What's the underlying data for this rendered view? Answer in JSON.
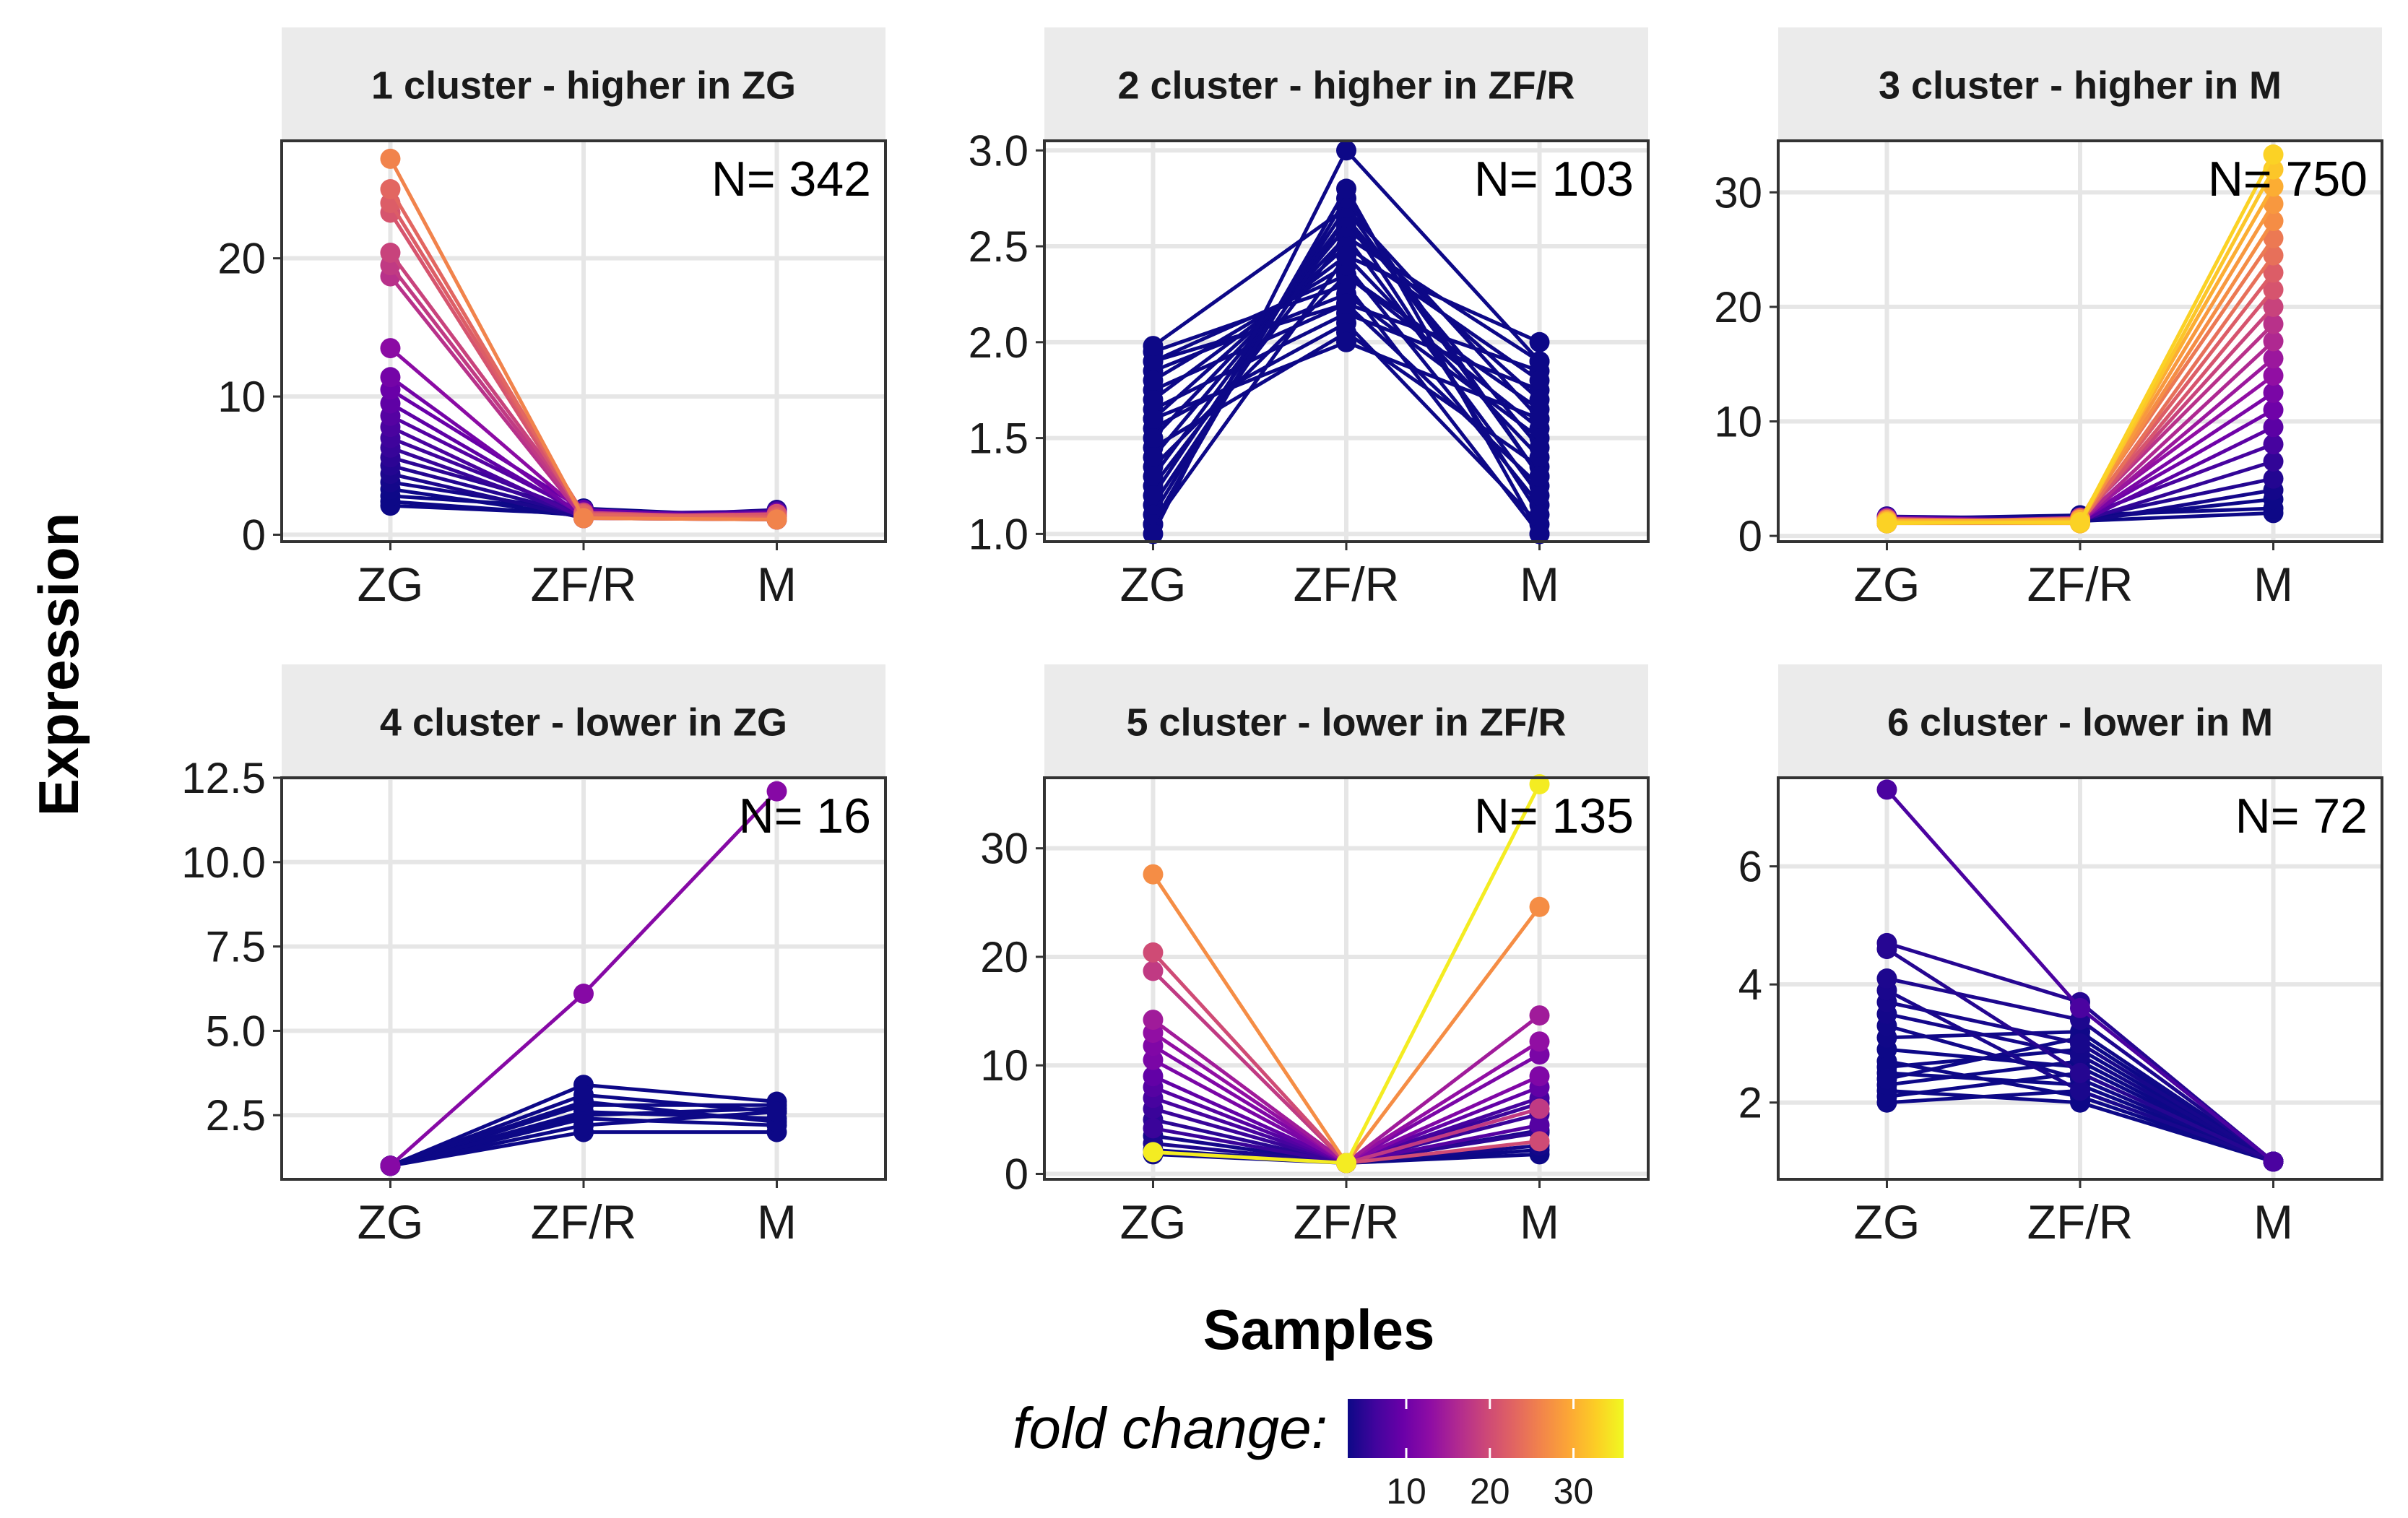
{
  "figure": {
    "ylabel": "Expression",
    "xlabel": "Samples",
    "legend_title": "fold change:",
    "legend_ticks": [
      "10",
      "20",
      "30"
    ],
    "legend_range": [
      3,
      36
    ],
    "colors": {
      "strip_bg": "#ebebeb",
      "grid": "#e6e6e6",
      "panel_border": "#333333",
      "palette": [
        "#0d0887",
        "#3e049c",
        "#6a00a8",
        "#900da4",
        "#b12a90",
        "#cc4778",
        "#e16462",
        "#f2844b",
        "#fca636",
        "#fcce25",
        "#f0f921"
      ]
    },
    "legend_position": "bottom"
  },
  "chart_data": [
    {
      "type": "line",
      "title": "1 cluster - higher in ZG",
      "annotation": "N= 342",
      "categories": [
        "ZG",
        "ZF/R",
        "M"
      ],
      "yticks": [
        0,
        10,
        20
      ],
      "ytick_labels": [
        "0",
        "10",
        "20"
      ],
      "ylim": [
        -0.5,
        28.5
      ],
      "series": [
        {
          "values": [
            27.2,
            1.2,
            1.1
          ],
          "fold_change": 26
        },
        {
          "values": [
            25.0,
            1.4,
            1.2
          ],
          "fold_change": 23
        },
        {
          "values": [
            24.0,
            1.5,
            1.3
          ],
          "fold_change": 22
        },
        {
          "values": [
            23.3,
            1.3,
            1.5
          ],
          "fold_change": 21
        },
        {
          "values": [
            20.4,
            1.6,
            1.2
          ],
          "fold_change": 19
        },
        {
          "values": [
            19.5,
            1.4,
            1.4
          ],
          "fold_change": 18
        },
        {
          "values": [
            18.7,
            1.2,
            1.1
          ],
          "fold_change": 17
        },
        {
          "values": [
            13.5,
            1.5,
            1.3
          ],
          "fold_change": 12.5
        },
        {
          "values": [
            11.4,
            1.3,
            1.6
          ],
          "fold_change": 10.5
        },
        {
          "values": [
            10.5,
            1.8,
            1.2
          ],
          "fold_change": 9.5
        },
        {
          "values": [
            9.5,
            1.4,
            1.5
          ],
          "fold_change": 8.8
        },
        {
          "values": [
            8.6,
            1.6,
            1.3
          ],
          "fold_change": 8
        },
        {
          "values": [
            7.8,
            1.2,
            1.1
          ],
          "fold_change": 7.2
        },
        {
          "values": [
            7.0,
            1.5,
            1.7
          ],
          "fold_change": 6.4
        },
        {
          "values": [
            6.3,
            1.3,
            1.2
          ],
          "fold_change": 5.8
        },
        {
          "values": [
            5.6,
            1.7,
            1.4
          ],
          "fold_change": 5.1
        },
        {
          "values": [
            5.0,
            1.4,
            1.3
          ],
          "fold_change": 4.5
        },
        {
          "values": [
            4.4,
            1.2,
            1.8
          ],
          "fold_change": 4
        },
        {
          "values": [
            3.8,
            1.6,
            1.2
          ],
          "fold_change": 3.5
        },
        {
          "values": [
            3.3,
            1.3,
            1.5
          ],
          "fold_change": 3.1
        },
        {
          "values": [
            2.8,
            1.9,
            1.3
          ],
          "fold_change": 2.6
        },
        {
          "values": [
            2.4,
            1.4,
            1.1
          ],
          "fold_change": 2.2
        },
        {
          "values": [
            2.1,
            1.5,
            1.6
          ],
          "fold_change": 2
        }
      ]
    },
    {
      "type": "line",
      "title": "2 cluster - higher in ZF/R",
      "annotation": "N= 103",
      "categories": [
        "ZG",
        "ZF/R",
        "M"
      ],
      "yticks": [
        1.0,
        1.5,
        2.0,
        2.5,
        3.0
      ],
      "ytick_labels": [
        "1.0",
        "1.5",
        "2.0",
        "2.5",
        "3.0"
      ],
      "ylim": [
        0.96,
        3.05
      ],
      "series": [
        {
          "values": [
            1.0,
            3.0,
            1.9
          ],
          "fold_change": 3
        },
        {
          "values": [
            1.05,
            2.8,
            1.0
          ],
          "fold_change": 2.8
        },
        {
          "values": [
            1.1,
            2.75,
            1.3
          ],
          "fold_change": 2.6
        },
        {
          "values": [
            1.2,
            2.7,
            1.6
          ],
          "fold_change": 2.5
        },
        {
          "values": [
            1.3,
            2.65,
            1.1
          ],
          "fold_change": 2.4
        },
        {
          "values": [
            1.4,
            2.6,
            1.7
          ],
          "fold_change": 2.3
        },
        {
          "values": [
            1.5,
            2.55,
            1.2
          ],
          "fold_change": 2.2
        },
        {
          "values": [
            1.6,
            2.5,
            1.8
          ],
          "fold_change": 2.2
        },
        {
          "values": [
            1.7,
            2.45,
            1.4
          ],
          "fold_change": 2.1
        },
        {
          "values": [
            1.8,
            2.4,
            1.15
          ],
          "fold_change": 2.1
        },
        {
          "values": [
            1.9,
            2.35,
            1.65
          ],
          "fold_change": 2
        },
        {
          "values": [
            1.95,
            2.3,
            1.0
          ],
          "fold_change": 2
        },
        {
          "values": [
            1.85,
            2.25,
            1.5
          ],
          "fold_change": 2
        },
        {
          "values": [
            1.75,
            2.2,
            1.25
          ],
          "fold_change": 2
        },
        {
          "values": [
            1.65,
            2.15,
            1.75
          ],
          "fold_change": 2
        },
        {
          "values": [
            1.55,
            2.1,
            1.05
          ],
          "fold_change": 2
        },
        {
          "values": [
            1.45,
            2.05,
            1.35
          ],
          "fold_change": 2
        },
        {
          "values": [
            1.35,
            2.35,
            1.55
          ],
          "fold_change": 2
        },
        {
          "values": [
            1.25,
            2.55,
            1.9
          ],
          "fold_change": 2.1
        },
        {
          "values": [
            1.15,
            2.65,
            1.45
          ],
          "fold_change": 2.3
        },
        {
          "values": [
            1.05,
            2.45,
            2.0
          ],
          "fold_change": 2.3
        },
        {
          "values": [
            1.98,
            2.7,
            1.3
          ],
          "fold_change": 2.1
        },
        {
          "values": [
            1.9,
            2.2,
            1.85
          ],
          "fold_change": 2
        },
        {
          "values": [
            1.6,
            2.0,
            1.6
          ],
          "fold_change": 2
        }
      ]
    },
    {
      "type": "line",
      "title": "3 cluster - higher in M",
      "annotation": "N= 750",
      "categories": [
        "ZG",
        "ZF/R",
        "M"
      ],
      "yticks": [
        0,
        10,
        20,
        30
      ],
      "ytick_labels": [
        "0",
        "10",
        "20",
        "30"
      ],
      "ylim": [
        -0.5,
        34.5
      ],
      "series": [
        {
          "values": [
            1.1,
            1.2,
            33.3
          ],
          "fold_change": 33
        },
        {
          "values": [
            1.2,
            1.1,
            32.0
          ],
          "fold_change": 32
        },
        {
          "values": [
            1.3,
            1.4,
            30.5
          ],
          "fold_change": 30
        },
        {
          "values": [
            1.1,
            1.3,
            29.0
          ],
          "fold_change": 28
        },
        {
          "values": [
            1.4,
            1.2,
            27.5
          ],
          "fold_change": 27
        },
        {
          "values": [
            1.2,
            1.5,
            26.0
          ],
          "fold_change": 25
        },
        {
          "values": [
            1.1,
            1.1,
            24.5
          ],
          "fold_change": 24
        },
        {
          "values": [
            1.3,
            1.3,
            23.0
          ],
          "fold_change": 22
        },
        {
          "values": [
            1.5,
            1.2,
            21.5
          ],
          "fold_change": 21
        },
        {
          "values": [
            1.2,
            1.4,
            20.0
          ],
          "fold_change": 19
        },
        {
          "values": [
            1.1,
            1.6,
            18.5
          ],
          "fold_change": 17
        },
        {
          "values": [
            1.4,
            1.3,
            17.0
          ],
          "fold_change": 16
        },
        {
          "values": [
            1.3,
            1.2,
            15.5
          ],
          "fold_change": 14
        },
        {
          "values": [
            1.2,
            1.5,
            14.0
          ],
          "fold_change": 13
        },
        {
          "values": [
            1.6,
            1.3,
            12.5
          ],
          "fold_change": 11
        },
        {
          "values": [
            1.1,
            1.4,
            11.0
          ],
          "fold_change": 10
        },
        {
          "values": [
            1.3,
            1.2,
            9.5
          ],
          "fold_change": 8.5
        },
        {
          "values": [
            1.2,
            1.6,
            8.0
          ],
          "fold_change": 7
        },
        {
          "values": [
            1.4,
            1.3,
            6.5
          ],
          "fold_change": 5.5
        },
        {
          "values": [
            1.7,
            1.5,
            5.0
          ],
          "fold_change": 4.5
        },
        {
          "values": [
            1.3,
            1.2,
            4.0
          ],
          "fold_change": 3.5
        },
        {
          "values": [
            1.2,
            1.4,
            3.2
          ],
          "fold_change": 2.8
        },
        {
          "values": [
            1.5,
            1.8,
            2.4
          ],
          "fold_change": 2.2
        },
        {
          "values": [
            1.1,
            1.3,
            2.0
          ],
          "fold_change": 2
        }
      ]
    },
    {
      "type": "line",
      "title": "4 cluster - lower in ZG",
      "annotation": "N= 16",
      "categories": [
        "ZG",
        "ZF/R",
        "M"
      ],
      "yticks": [
        2.5,
        5.0,
        7.5,
        10.0,
        12.5
      ],
      "ytick_labels": [
        "2.5",
        "5.0",
        "7.5",
        "10.0",
        "12.5"
      ],
      "ylim": [
        0.6,
        12.5
      ],
      "series": [
        {
          "values": [
            1.0,
            6.1,
            12.1
          ],
          "fold_change": 12
        },
        {
          "values": [
            1.0,
            3.4,
            2.9
          ],
          "fold_change": 3
        },
        {
          "values": [
            1.0,
            3.1,
            2.6
          ],
          "fold_change": 3
        },
        {
          "values": [
            1.0,
            2.8,
            2.8
          ],
          "fold_change": 2.8
        },
        {
          "values": [
            1.0,
            2.6,
            2.4
          ],
          "fold_change": 2.6
        },
        {
          "values": [
            1.0,
            2.4,
            2.2
          ],
          "fold_change": 2.4
        },
        {
          "values": [
            1.0,
            2.2,
            2.6
          ],
          "fold_change": 2.4
        },
        {
          "values": [
            1.0,
            2.0,
            2.0
          ],
          "fold_change": 2
        },
        {
          "values": [
            1.0,
            2.9,
            2.3
          ],
          "fold_change": 2.8
        },
        {
          "values": [
            1.0,
            2.5,
            2.7
          ],
          "fold_change": 2.6
        }
      ]
    },
    {
      "type": "line",
      "title": "5 cluster - lower in ZF/R",
      "annotation": "N= 135",
      "categories": [
        "ZG",
        "ZF/R",
        "M"
      ],
      "yticks": [
        0,
        10,
        20,
        30
      ],
      "ytick_labels": [
        "0",
        "10",
        "20",
        "30"
      ],
      "ylim": [
        -0.5,
        36.5
      ],
      "series": [
        {
          "values": [
            2.0,
            1.0,
            35.9
          ],
          "fold_change": 35
        },
        {
          "values": [
            27.6,
            1.0,
            24.6
          ],
          "fold_change": 27
        },
        {
          "values": [
            20.4,
            1.0,
            3.0
          ],
          "fold_change": 20
        },
        {
          "values": [
            18.7,
            1.0,
            6.0
          ],
          "fold_change": 18
        },
        {
          "values": [
            14.2,
            1.0,
            14.6
          ],
          "fold_change": 14.5
        },
        {
          "values": [
            13.0,
            1.0,
            12.2
          ],
          "fold_change": 13
        },
        {
          "values": [
            11.8,
            1.0,
            9.0
          ],
          "fold_change": 11.5
        },
        {
          "values": [
            10.5,
            1.0,
            11.0
          ],
          "fold_change": 11
        },
        {
          "values": [
            9.0,
            1.0,
            8.0
          ],
          "fold_change": 9
        },
        {
          "values": [
            8.0,
            1.0,
            4.5
          ],
          "fold_change": 8
        },
        {
          "values": [
            7.0,
            1.0,
            7.0
          ],
          "fold_change": 7
        },
        {
          "values": [
            6.0,
            1.0,
            5.5
          ],
          "fold_change": 6
        },
        {
          "values": [
            5.0,
            1.0,
            3.8
          ],
          "fold_change": 5
        },
        {
          "values": [
            4.2,
            1.0,
            6.5
          ],
          "fold_change": 6
        },
        {
          "values": [
            3.5,
            1.0,
            2.6
          ],
          "fold_change": 3.5
        },
        {
          "values": [
            2.8,
            1.0,
            4.0
          ],
          "fold_change": 4
        },
        {
          "values": [
            2.2,
            1.0,
            2.2
          ],
          "fold_change": 2.2
        },
        {
          "values": [
            1.8,
            1.0,
            1.8
          ],
          "fold_change": 1.8
        }
      ]
    },
    {
      "type": "line",
      "title": "6 cluster - lower in M",
      "annotation": "N= 72",
      "categories": [
        "ZG",
        "ZF/R",
        "M"
      ],
      "yticks": [
        2,
        4,
        6
      ],
      "ytick_labels": [
        "2",
        "4",
        "6"
      ],
      "ylim": [
        0.7,
        7.5
      ],
      "series": [
        {
          "values": [
            7.3,
            3.6,
            1.0
          ],
          "fold_change": 7.3
        },
        {
          "values": [
            4.7,
            3.7,
            1.0
          ],
          "fold_change": 4.7
        },
        {
          "values": [
            4.6,
            2.5,
            1.0
          ],
          "fold_change": 4.6
        },
        {
          "values": [
            4.1,
            3.4,
            1.0
          ],
          "fold_change": 4.1
        },
        {
          "values": [
            3.9,
            2.2,
            1.0
          ],
          "fold_change": 3.9
        },
        {
          "values": [
            3.7,
            3.0,
            1.0
          ],
          "fold_change": 3.7
        },
        {
          "values": [
            3.5,
            2.8,
            1.0
          ],
          "fold_change": 3.5
        },
        {
          "values": [
            3.3,
            2.4,
            1.0
          ],
          "fold_change": 3.3
        },
        {
          "values": [
            3.1,
            3.2,
            1.0
          ],
          "fold_change": 3.2
        },
        {
          "values": [
            2.9,
            2.6,
            1.0
          ],
          "fold_change": 2.9
        },
        {
          "values": [
            2.7,
            2.1,
            1.0
          ],
          "fold_change": 2.7
        },
        {
          "values": [
            2.6,
            2.9,
            1.0
          ],
          "fold_change": 2.9
        },
        {
          "values": [
            2.5,
            2.3,
            1.0
          ],
          "fold_change": 2.5
        },
        {
          "values": [
            2.4,
            3.1,
            1.0
          ],
          "fold_change": 3.1
        },
        {
          "values": [
            2.3,
            2.7,
            1.0
          ],
          "fold_change": 2.7
        },
        {
          "values": [
            2.2,
            2.0,
            1.0
          ],
          "fold_change": 2.2
        },
        {
          "values": [
            2.1,
            2.5,
            1.0
          ],
          "fold_change": 2.5
        },
        {
          "values": [
            2.0,
            2.2,
            1.0
          ],
          "fold_change": 2.2
        }
      ]
    }
  ]
}
